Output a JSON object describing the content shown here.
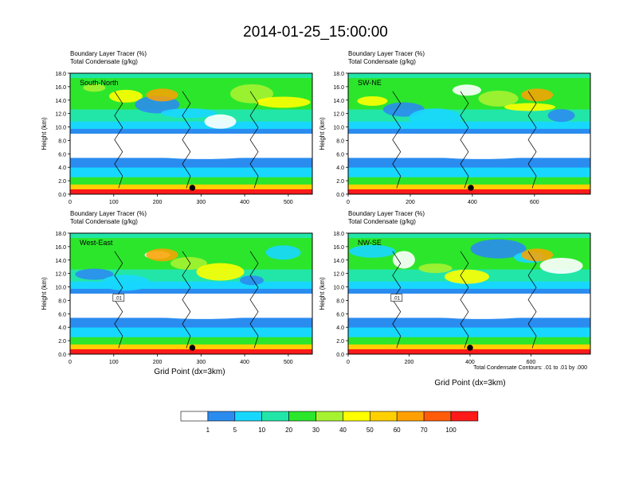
{
  "title": "2014-01-25_15:00:00",
  "panel_label_1": "Boundary Layer Tracer   (%)",
  "panel_label_2": "Total Condensate   (g/kg)",
  "ylabel": "Height (km)",
  "xlabel": "Grid Point (dx=3km)",
  "contour_note": "Total Condensate Contours: .01 to .01 by .000",
  "contour_label": ".01",
  "colors": [
    "#ffffff",
    "#2b8cf0",
    "#18d7ff",
    "#22e6a8",
    "#2ce62c",
    "#a6f230",
    "#ffff00",
    "#ffd000",
    "#ffa000",
    "#ff5c0a",
    "#ff1a1a"
  ],
  "chart_data": [
    {
      "type": "heatmap",
      "name": "South-North",
      "ylim": [
        0,
        18
      ],
      "yticks": [
        "0.0",
        "2.0",
        "4.0",
        "6.0",
        "8.0",
        "10.0",
        "12.0",
        "14.0",
        "16.0",
        "18.0"
      ],
      "xlim": [
        0,
        555
      ],
      "xticks": [
        0,
        100,
        200,
        300,
        400,
        500
      ],
      "marker_x": 280
    },
    {
      "type": "heatmap",
      "name": "SW-NE",
      "ylim": [
        0,
        18
      ],
      "yticks": [
        "0.0",
        "2.0",
        "4.0",
        "6.0",
        "8.0",
        "10.0",
        "12.0",
        "14.0",
        "16.0",
        "18.0"
      ],
      "xlim": [
        0,
        780
      ],
      "xticks": [
        0,
        200,
        400,
        600
      ],
      "marker_x": 395
    },
    {
      "type": "heatmap",
      "name": "West-East",
      "ylim": [
        0,
        18
      ],
      "yticks": [
        "0.0",
        "2.0",
        "4.0",
        "6.0",
        "8.0",
        "10.0",
        "12.0",
        "14.0",
        "16.0",
        "18.0"
      ],
      "xlim": [
        0,
        555
      ],
      "xticks": [
        0,
        100,
        200,
        300,
        400,
        500
      ],
      "marker_x": 280
    },
    {
      "type": "heatmap",
      "name": "NW-SE",
      "ylim": [
        0,
        18
      ],
      "yticks": [
        "0.0",
        "2.0",
        "4.0",
        "6.0",
        "8.0",
        "10.0",
        "12.0",
        "14.0",
        "16.0",
        "18.0"
      ],
      "xlim": [
        0,
        795
      ],
      "xticks": [
        0,
        200,
        400,
        600
      ],
      "marker_x": 400
    }
  ],
  "colorbar": {
    "labels": [
      "1",
      "5",
      "10",
      "20",
      "30",
      "40",
      "50",
      "60",
      "70",
      "100"
    ]
  }
}
